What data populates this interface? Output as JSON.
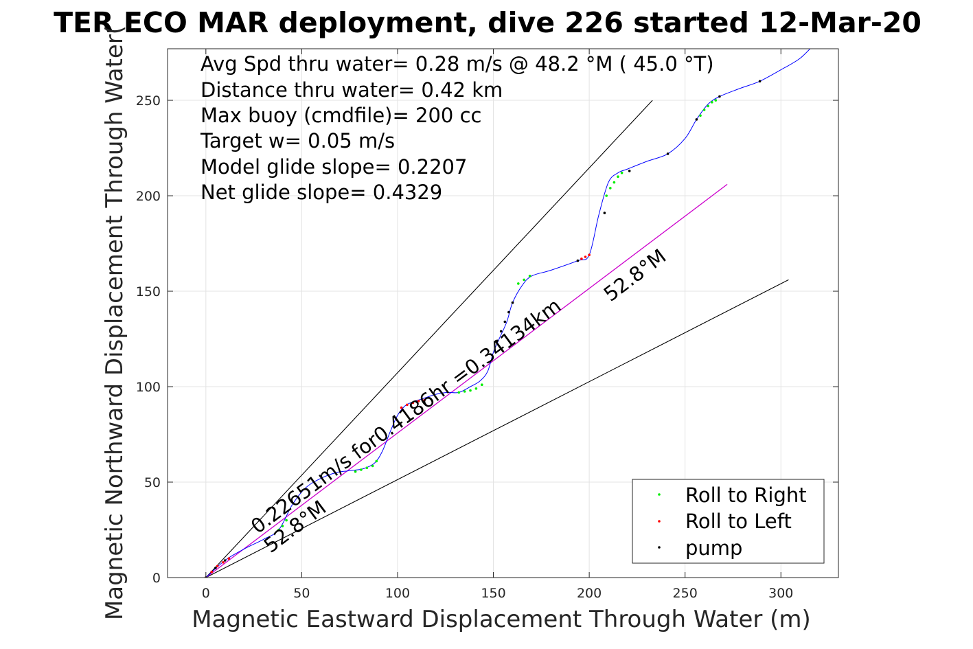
{
  "chart_data": {
    "type": "line",
    "title": "TER ECO MAR deployment, dive 226 started 12-Mar-20",
    "xlabel": "Magnetic Eastward Displacement Through Water (m)",
    "ylabel": "Magnetic Northward Displacement Through Water(",
    "xlim": [
      -20,
      330
    ],
    "ylim": [
      0,
      277
    ],
    "xticks": [
      0,
      50,
      100,
      150,
      200,
      250,
      300
    ],
    "yticks": [
      0,
      50,
      100,
      150,
      200,
      250
    ],
    "grid": true,
    "stats": [
      "Avg Spd thru water=  0.28 m/s @  48.2 °M ( 45.0 °T)",
      "Distance thru water=  0.42 km",
      "Max buoy (cmdfile)= 200 cc",
      "Target w= 0.05 m/s",
      "Model glide slope= 0.2207",
      "Net glide slope= 0.4329"
    ],
    "annotations": {
      "track_summary": "0.22651m/s for0.4186hr =0.34134km",
      "heading_upper": "52.8°M",
      "heading_lower": "52.8°M"
    },
    "legend": {
      "position": "bottom-right",
      "entries": [
        {
          "label": "Roll to Right",
          "color": "#00ee00"
        },
        {
          "label": "Roll to Left",
          "color": "#ff0000"
        },
        {
          "label": "pump",
          "color": "#000000"
        }
      ]
    },
    "colors": {
      "track": "#0000ff",
      "net_line": "#cc00cc",
      "envelope": "#000000",
      "grid": "#e3e3e3"
    },
    "series": [
      {
        "name": "track",
        "x": [
          0,
          10,
          20,
          30,
          38,
          45,
          52,
          60,
          68,
          75,
          82,
          88,
          92,
          96,
          100,
          104,
          108,
          114,
          120,
          126,
          132,
          138,
          143,
          147,
          150,
          153,
          157,
          160,
          165,
          170,
          180,
          194,
          200,
          205,
          210,
          215,
          220,
          230,
          241,
          250,
          256,
          262,
          268,
          278,
          289,
          300,
          310,
          318
        ],
        "y": [
          0,
          9,
          15,
          20,
          25,
          38,
          47,
          52,
          55,
          56,
          57,
          60,
          66,
          76,
          85,
          90,
          92,
          94,
          96,
          97,
          97,
          100,
          103,
          108,
          118,
          125,
          134,
          144,
          153,
          158,
          161,
          166,
          169,
          190,
          207,
          212,
          214,
          218,
          222,
          230,
          240,
          248,
          252,
          256,
          260,
          266,
          272,
          280
        ]
      },
      {
        "name": "Roll to Right",
        "x": [
          38,
          40,
          42,
          78,
          81,
          84,
          87,
          89,
          132,
          135,
          138,
          141,
          144,
          163,
          166,
          169,
          209,
          211,
          213,
          215,
          217,
          258,
          260,
          262,
          264,
          266
        ],
        "y": [
          25,
          27,
          30,
          55.5,
          56.5,
          57.5,
          58.5,
          61,
          97,
          97.5,
          98,
          99,
          101,
          154,
          156,
          158,
          200,
          204,
          207,
          210,
          212,
          242,
          245,
          247,
          249,
          250
        ]
      },
      {
        "name": "Roll to Left",
        "x": [
          0,
          3,
          6,
          9,
          12,
          102,
          105,
          108,
          111,
          114,
          196,
          198,
          200
        ],
        "y": [
          0,
          3,
          6,
          8,
          10,
          89,
          90.5,
          91.5,
          92.5,
          93,
          167,
          168,
          169
        ]
      },
      {
        "name": "pump",
        "x": [
          0,
          5,
          10,
          152,
          154,
          156,
          158,
          160,
          194,
          208,
          221,
          241,
          256,
          268,
          289
        ],
        "y": [
          0,
          5,
          9,
          124,
          129,
          134,
          139,
          144,
          166,
          191,
          213,
          222,
          240,
          252,
          260
        ]
      },
      {
        "name": "net",
        "x": [
          0,
          272
        ],
        "y": [
          0,
          206
        ]
      },
      {
        "name": "envelope_upper",
        "x": [
          0,
          233
        ],
        "y": [
          0,
          250
        ]
      },
      {
        "name": "envelope_lower",
        "x": [
          0,
          304
        ],
        "y": [
          0,
          156
        ]
      }
    ]
  }
}
